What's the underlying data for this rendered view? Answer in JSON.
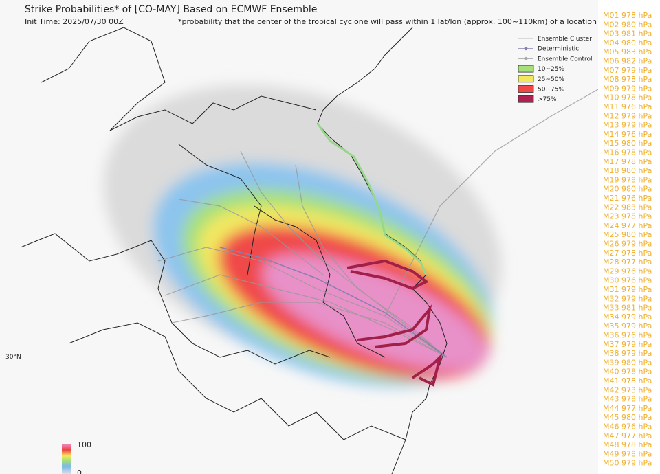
{
  "header": {
    "title": "Strike Probabilities* of [CO-MAY] Based on ECMWF Ensemble",
    "init_time": "Init Time: 2025/07/30 00Z",
    "note": "*probability that the center of the tropical cyclone will pass within 1 lat/lon (approx. 100~110km) of a location"
  },
  "legend": [
    "Ensemble Cluster",
    "Deterministic",
    "Ensemble Control",
    "10~25%",
    "25~50%",
    "50~75%",
    ">75%"
  ],
  "map": {
    "lat_label": "30°N",
    "colorbar_max": "100",
    "colorbar_min": "0"
  },
  "members": [
    "M01 978 hPa",
    "M02 980 hPa",
    "M03 981 hPa",
    "M04 980 hPa",
    "M05 983 hPa",
    "M06 982 hPa",
    "M07 979 hPa",
    "M08 978 hPa",
    "M09 979 hPa",
    "M10 978 hPa",
    "M11 976 hPa",
    "M12 979 hPa",
    "M13 979 hPa",
    "M14 976 hPa",
    "M15 980 hPa",
    "M16 978 hPa",
    "M17 978 hPa",
    "M18 980 hPa",
    "M19 978 hPa",
    "M20 980 hPa",
    "M21 976 hPa",
    "M22 983 hPa",
    "M23 978 hPa",
    "M24 977 hPa",
    "M25 980 hPa",
    "M26 979 hPa",
    "M27 978 hPa",
    "M28 977 hPa",
    "M29 976 hPa",
    "M30 976 hPa",
    "M31 979 hPa",
    "M32 979 hPa",
    "M33 981 hPa",
    "M34 979 hPa",
    "M35 979 hPa",
    "M36 976 hPa",
    "M37 979 hPa",
    "M38 979 hPa",
    "M39 980 hPa",
    "M40 978 hPa",
    "M41 978 hPa",
    "M42 973 hPa",
    "M43 978 hPa",
    "M44 977 hPa",
    "M45 980 hPa",
    "M46 976 hPa",
    "M47 977 hPa",
    "M48 978 hPa",
    "M49 978 hPa",
    "M50 979 hPa"
  ]
}
